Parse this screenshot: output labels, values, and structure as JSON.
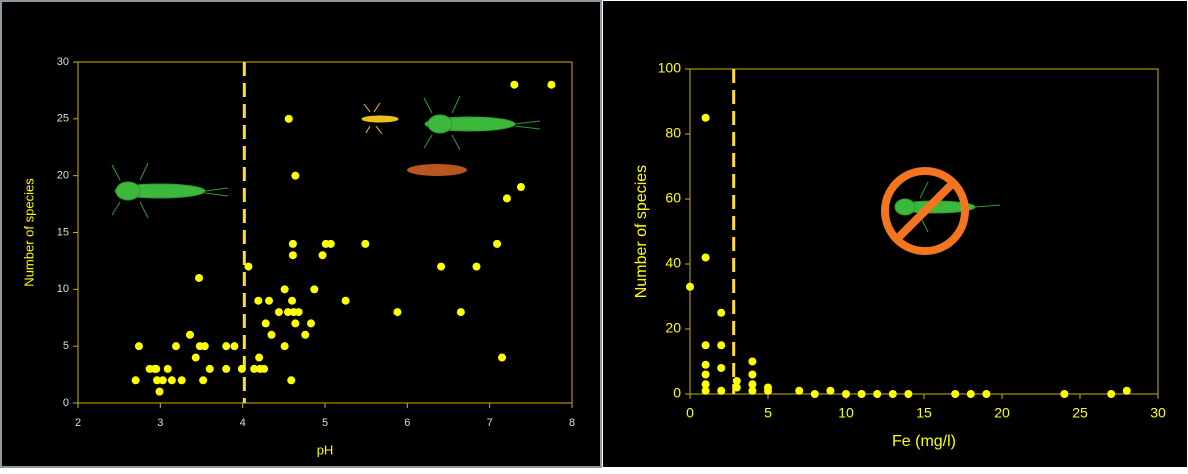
{
  "chart_data": [
    {
      "type": "scatter",
      "x_label": "pH",
      "y_label": "Number of species",
      "color": "#ffff00",
      "vline_x": 4.02,
      "x": [
        2.7,
        2.74,
        2.87,
        2.93,
        2.96,
        2.99,
        3.03,
        2.95,
        3.09,
        3.19,
        3.14,
        3.26,
        3.36,
        3.43,
        3.47,
        3.48,
        3.54,
        3.52,
        3.6,
        3.8,
        3.8,
        3.9,
        3.99,
        4.07,
        4.14,
        4.2,
        4.21,
        4.26,
        4.19,
        4.28,
        4.32,
        4.35,
        4.44,
        4.51,
        4.51,
        4.55,
        4.56,
        4.59,
        4.6,
        4.61,
        4.61,
        4.62,
        4.64,
        4.64,
        4.68,
        4.76,
        4.83,
        4.87,
        4.97,
        5.01,
        5.07,
        5.25,
        5.49,
        5.88,
        6.41,
        6.65,
        6.84,
        7.09,
        7.15,
        7.21,
        7.3,
        7.38,
        7.75
      ],
      "values": [
        2,
        5,
        3,
        3,
        2,
        1,
        2,
        3,
        3,
        5,
        2,
        2,
        6,
        4,
        11,
        5,
        5,
        2,
        3,
        3,
        5,
        5,
        3,
        12,
        3,
        4,
        3,
        3,
        9,
        7,
        9,
        6,
        8,
        10,
        5,
        8,
        25,
        2,
        9,
        13,
        14,
        8,
        7,
        20,
        8,
        6,
        7,
        10,
        13,
        14,
        14,
        9,
        14,
        8,
        12,
        8,
        12,
        14,
        4,
        18,
        28,
        19,
        28
      ],
      "xlim": [
        2,
        8
      ],
      "xticks": [
        2,
        3,
        4,
        5,
        6,
        7,
        8
      ],
      "ylim": [
        0,
        30
      ],
      "yticks": [
        0,
        5,
        10,
        15,
        20,
        25,
        30
      ]
    },
    {
      "type": "scatter",
      "x_label": "Fe (mg/l)",
      "y_label": "Number of species",
      "color": "#ffff00",
      "vline_x": 2.8,
      "x": [
        0,
        1,
        1,
        1,
        1,
        1,
        1,
        1,
        2,
        2,
        2,
        2,
        3,
        3,
        4,
        4,
        4,
        4,
        5,
        5,
        7,
        8,
        9,
        10,
        11,
        12,
        13,
        14,
        17,
        18,
        19,
        24,
        27,
        28
      ],
      "values": [
        33,
        85,
        42,
        15,
        9,
        6,
        3,
        1,
        25,
        15,
        8,
        1,
        4,
        2,
        10,
        6,
        3,
        1,
        2,
        1,
        1,
        0,
        1,
        0,
        0,
        0,
        0,
        0,
        0,
        0,
        0,
        0,
        0,
        1
      ],
      "xlim": [
        0,
        30
      ],
      "xticks": [
        0,
        5,
        10,
        15,
        20,
        25,
        30
      ],
      "ylim": [
        0,
        100
      ],
      "yticks": [
        0,
        20,
        40,
        60,
        80,
        100
      ]
    }
  ]
}
